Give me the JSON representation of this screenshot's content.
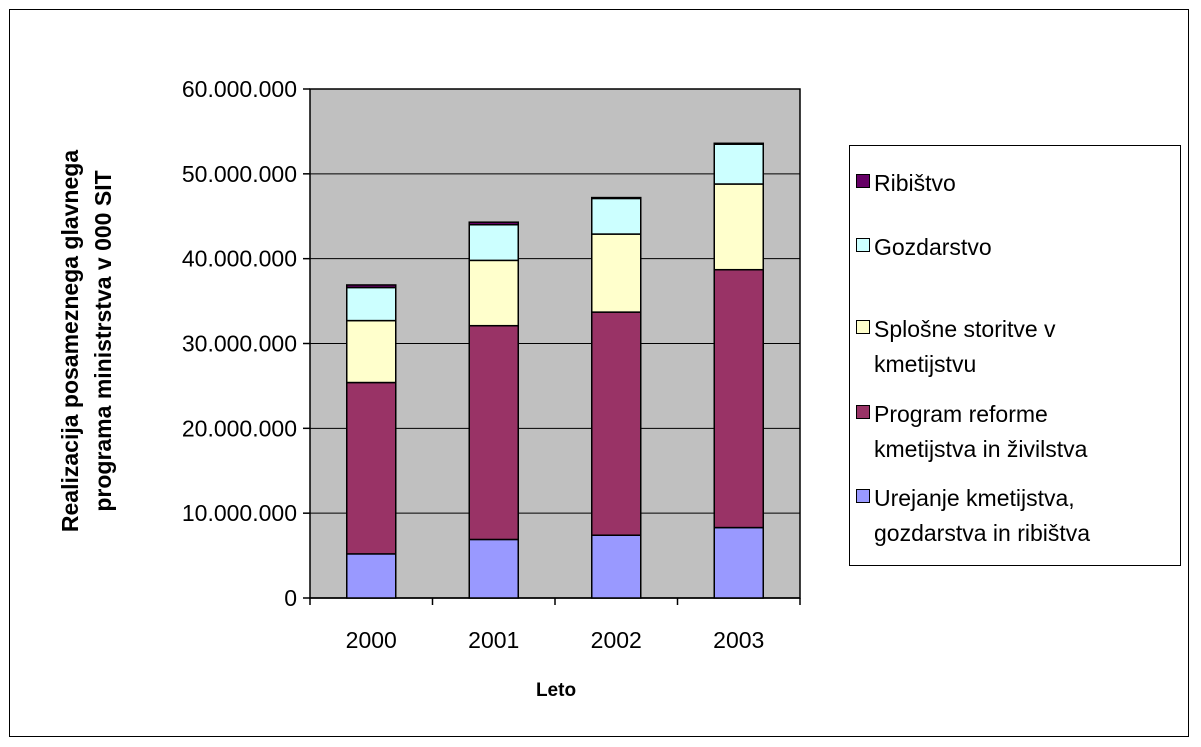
{
  "chart_data": {
    "type": "bar",
    "stacked": true,
    "categories": [
      "2000",
      "2001",
      "2002",
      "2003"
    ],
    "series": [
      {
        "name": "Urejanje kmetijstva, gozdarstva in ribištva",
        "color": "#9999ff",
        "values": [
          5200000,
          6900000,
          7400000,
          8300000
        ]
      },
      {
        "name": "Program reforme kmetijstva in živilstva",
        "color": "#993366",
        "values": [
          20200000,
          25200000,
          26300000,
          30400000
        ]
      },
      {
        "name": "Splošne storitve v kmetijstvu",
        "color": "#ffffcc",
        "values": [
          7300000,
          7700000,
          9200000,
          10100000
        ]
      },
      {
        "name": "Gozdarstvo",
        "color": "#ccffff",
        "values": [
          3900000,
          4200000,
          4200000,
          4700000
        ]
      },
      {
        "name": "Ribištvo",
        "color": "#660066",
        "values": [
          300000,
          300000,
          100000,
          100000
        ]
      }
    ],
    "xlabel": "Leto",
    "ylabel_lines": [
      "Realizacija posameznega glavnega",
      "programa ministrstva v 000 SIT"
    ],
    "ylim": [
      0,
      60000000
    ],
    "yticks": [
      "0",
      "10.000.000",
      "20.000.000",
      "30.000.000",
      "40.000.000",
      "50.000.000",
      "60.000.000"
    ],
    "grid": true,
    "plot_background": "#c0c0c0",
    "legend_position": "right",
    "legend_order": [
      "Ribištvo",
      "Gozdarstvo",
      "Splošne storitve v kmetijstvu",
      "Program reforme kmetijstva in živilstva",
      "Urejanje kmetijstva, gozdarstva in ribištva"
    ],
    "legend_label_lines": [
      [
        "Ribištvo"
      ],
      [
        "Gozdarstvo"
      ],
      [
        "Splošne storitve v",
        "kmetijstvu"
      ],
      [
        "Program reforme",
        "kmetijstva in živilstva"
      ],
      [
        "Urejanje kmetijstva,",
        "gozdarstva in ribištva"
      ]
    ]
  }
}
